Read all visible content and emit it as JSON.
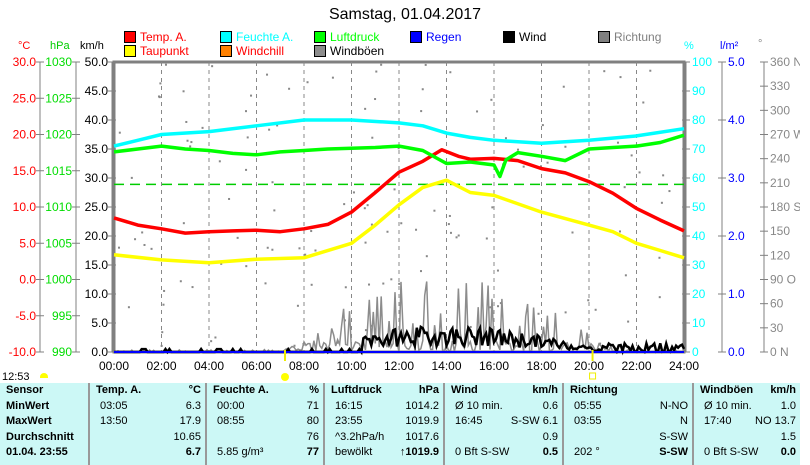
{
  "title": "Samstag, 01.04.2017",
  "legend": [
    {
      "label": "Temp. A.",
      "color": "#ff0000"
    },
    {
      "label": "Feuchte A.",
      "color": "#00ffff"
    },
    {
      "label": "Luftdruck",
      "color": "#00ff00"
    },
    {
      "label": "Regen",
      "color": "#0000ff"
    },
    {
      "label": "Wind",
      "color": "#000000"
    },
    {
      "label": "Richtung",
      "color": "#808080"
    },
    {
      "label": "Taupunkt",
      "color": "#ffff00"
    },
    {
      "label": "Windchill",
      "color": "#ff8000"
    },
    {
      "label": "Windböen",
      "color": "#8c8c8c"
    }
  ],
  "axis_units": {
    "temp": "°C",
    "pressure": "hPa",
    "wind": "km/h",
    "humidity": "%",
    "rain": "l/m²",
    "direction": "°"
  },
  "time_label": "12:53",
  "chart_data": {
    "type": "line",
    "x_ticks": [
      "00:00",
      "02:00",
      "04:00",
      "06:00",
      "08:00",
      "10:00",
      "12:00",
      "14:00",
      "16:00",
      "18:00",
      "20:00",
      "22:00",
      "24:00"
    ],
    "axes": {
      "temp": {
        "range": [
          -10,
          30
        ],
        "ticks": [
          "30.0",
          "25.0",
          "20.0",
          "15.0",
          "10.0",
          "5.0",
          "0.0",
          "-5.0",
          "-10.0"
        ]
      },
      "pressure": {
        "range": [
          990,
          1030
        ],
        "ticks": [
          "1030",
          "1025",
          "1020",
          "1015",
          "1010",
          "1005",
          "1000",
          "995",
          "990"
        ]
      },
      "wind": {
        "range": [
          0,
          50
        ],
        "ticks": [
          "50.0",
          "45.0",
          "40.0",
          "35.0",
          "30.0",
          "25.0",
          "20.0",
          "15.0",
          "10.0",
          "5.0",
          "0.0"
        ]
      },
      "humidity": {
        "range": [
          0,
          100
        ],
        "ticks": [
          "100",
          "90",
          "80",
          "70",
          "60",
          "50",
          "40",
          "30",
          "20",
          "10",
          "0"
        ]
      },
      "rain": {
        "range": [
          0,
          5
        ],
        "ticks": [
          "5.0",
          "4.0",
          "3.0",
          "2.0",
          "1.0",
          "0.0"
        ]
      },
      "direction": {
        "range": [
          0,
          360
        ],
        "ticks": [
          "360 N",
          "330",
          "300",
          "270 W",
          "240",
          "210",
          "180 S",
          "150",
          "120",
          "90  O",
          "60",
          "30",
          "0   N"
        ]
      }
    },
    "series": [
      {
        "name": "Temp. A.",
        "axis": "temp",
        "color": "#ff0000",
        "x": [
          0,
          1,
          2,
          3,
          4,
          5,
          6,
          7,
          8,
          9,
          10,
          11,
          12,
          13,
          13.8,
          14.5,
          15,
          16,
          17,
          18,
          19,
          20,
          21,
          22,
          23,
          24
        ],
        "y": [
          8.5,
          7.5,
          7,
          6.4,
          6.6,
          6.7,
          6.8,
          6.6,
          7,
          7.6,
          9.3,
          12,
          14.8,
          16.3,
          17.9,
          17,
          16.6,
          16.7,
          16.4,
          15.3,
          14.7,
          13.5,
          11.9,
          9.8,
          8.2,
          6.7
        ]
      },
      {
        "name": "Taupunkt",
        "axis": "temp",
        "color": "#ffff00",
        "x": [
          0,
          2,
          4,
          6,
          8,
          10,
          11,
          12,
          13,
          14,
          15,
          16,
          18,
          20,
          21,
          22,
          23,
          24
        ],
        "y": [
          3.4,
          2.7,
          2.3,
          2.8,
          3,
          5,
          7.5,
          10.3,
          12.7,
          13.7,
          12,
          11.6,
          9.3,
          7.5,
          6.6,
          5,
          4,
          3
        ]
      },
      {
        "name": "Feuchte A.",
        "axis": "humidity",
        "color": "#00ffff",
        "x": [
          0,
          1,
          2,
          4,
          6,
          8,
          10,
          12,
          13,
          14,
          15,
          16,
          18,
          20,
          22,
          24
        ],
        "y": [
          71,
          73,
          75,
          76,
          78,
          80,
          80,
          79,
          78,
          75.5,
          74,
          73,
          72,
          73,
          74.5,
          77
        ]
      },
      {
        "name": "Luftdruck",
        "axis": "pressure",
        "color": "#00ff00",
        "x": [
          0,
          1,
          2,
          3,
          4,
          5,
          6,
          7,
          8,
          9,
          10,
          11,
          12,
          13,
          14,
          15,
          16,
          16.25,
          16.5,
          17,
          18,
          19,
          20,
          21,
          22,
          23,
          24
        ],
        "y": [
          1017.6,
          1018,
          1018.4,
          1018,
          1017.8,
          1017.4,
          1017.2,
          1017.6,
          1017.8,
          1018,
          1018.1,
          1018.2,
          1018.4,
          1017.8,
          1016,
          1016.2,
          1015.8,
          1014.2,
          1016.5,
          1017.5,
          1017,
          1016.4,
          1018,
          1018.2,
          1018.4,
          1018.9,
          1019.9
        ]
      }
    ],
    "dashed_line": {
      "axis": "wind",
      "value": 28.9
    },
    "sunrise": 7.2,
    "sunset": 20.15
  },
  "table": {
    "headers": [
      "Sensor",
      "Temp. A.",
      "°C",
      "Feuchte A.",
      "%",
      "Luftdruck",
      "hPa",
      "Wind",
      "km/h",
      "Richtung",
      "",
      "Windböen",
      "km/h"
    ],
    "rows": [
      {
        "label": "MinWert",
        "temp": [
          "03:05",
          "6.3"
        ],
        "hum": [
          "00:00",
          "71"
        ],
        "press": [
          "16:15",
          "1014.2"
        ],
        "wind": [
          "Ø 10 min.",
          "0.6"
        ],
        "dir": [
          "05:55",
          "N-NO"
        ],
        "gust": [
          "Ø 10 min.",
          "1.0"
        ]
      },
      {
        "label": "MaxWert",
        "temp": [
          "13:50",
          "17.9"
        ],
        "hum": [
          "08:55",
          "80"
        ],
        "press": [
          "23:55",
          "1019.9"
        ],
        "wind": [
          "16:45",
          "S-SW 6.1"
        ],
        "dir": [
          "03:55",
          "N"
        ],
        "gust": [
          "17:40",
          "NO 13.7"
        ]
      },
      {
        "label": "Durchschnitt",
        "temp": [
          "",
          "10.65"
        ],
        "hum": [
          "",
          "76"
        ],
        "press": [
          "^3.2hPa/h",
          "1017.6"
        ],
        "wind": [
          "",
          "0.9"
        ],
        "dir": [
          "",
          "S-SW"
        ],
        "gust": [
          "",
          "1.5"
        ]
      },
      {
        "label": "01.04. 23:55",
        "temp": [
          "",
          "6.7"
        ],
        "hum": [
          "5.85 g/m³",
          "77"
        ],
        "press": [
          "bewölkt",
          "↑1019.9"
        ],
        "wind": [
          "0 Bft S-SW",
          "0.5"
        ],
        "dir": [
          "202 °",
          "S-SW"
        ],
        "gust": [
          "0 Bft S-SW",
          "0.0"
        ]
      }
    ]
  }
}
